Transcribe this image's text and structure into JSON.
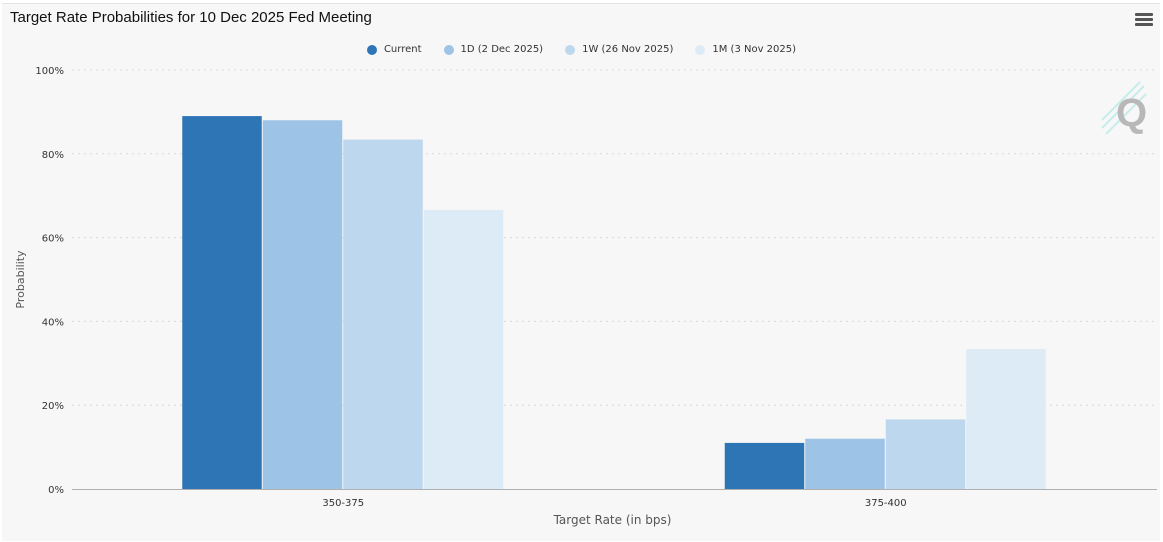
{
  "header": {
    "title": "Target Rate Probabilities for 10 Dec 2025 Fed Meeting"
  },
  "colors": {
    "current": "#2e75b6",
    "d1": "#9dc3e6",
    "w1": "#bdd7ee",
    "m1": "#ddebf7",
    "axis_text": "#333333",
    "grid": "#d8d8d8"
  },
  "legend": [
    {
      "label": "Current",
      "color": "#2e75b6"
    },
    {
      "label": "1D (2 Dec 2025)",
      "color": "#9dc3e6"
    },
    {
      "label": "1W (26 Nov 2025)",
      "color": "#bdd7ee"
    },
    {
      "label": "1M (3 Nov 2025)",
      "color": "#ddebf7"
    }
  ],
  "chart_data": {
    "type": "bar",
    "title": "Target Rate Probabilities for 10 Dec 2025 Fed Meeting",
    "xlabel": "Target Rate (in bps)",
    "ylabel": "Probability",
    "categories": [
      "350-375",
      "375-400"
    ],
    "ylim": [
      0,
      100
    ],
    "yticks": [
      "0%",
      "20%",
      "40%",
      "60%",
      "80%",
      "100%"
    ],
    "grid": true,
    "legend_position": "top",
    "series": [
      {
        "name": "Current",
        "values": [
          89.0,
          11.0
        ]
      },
      {
        "name": "1D (2 Dec 2025)",
        "values": [
          88.0,
          12.0
        ]
      },
      {
        "name": "1W (26 Nov 2025)",
        "values": [
          83.4,
          16.6
        ]
      },
      {
        "name": "1M (3 Nov 2025)",
        "values": [
          66.6,
          33.4
        ]
      }
    ]
  }
}
